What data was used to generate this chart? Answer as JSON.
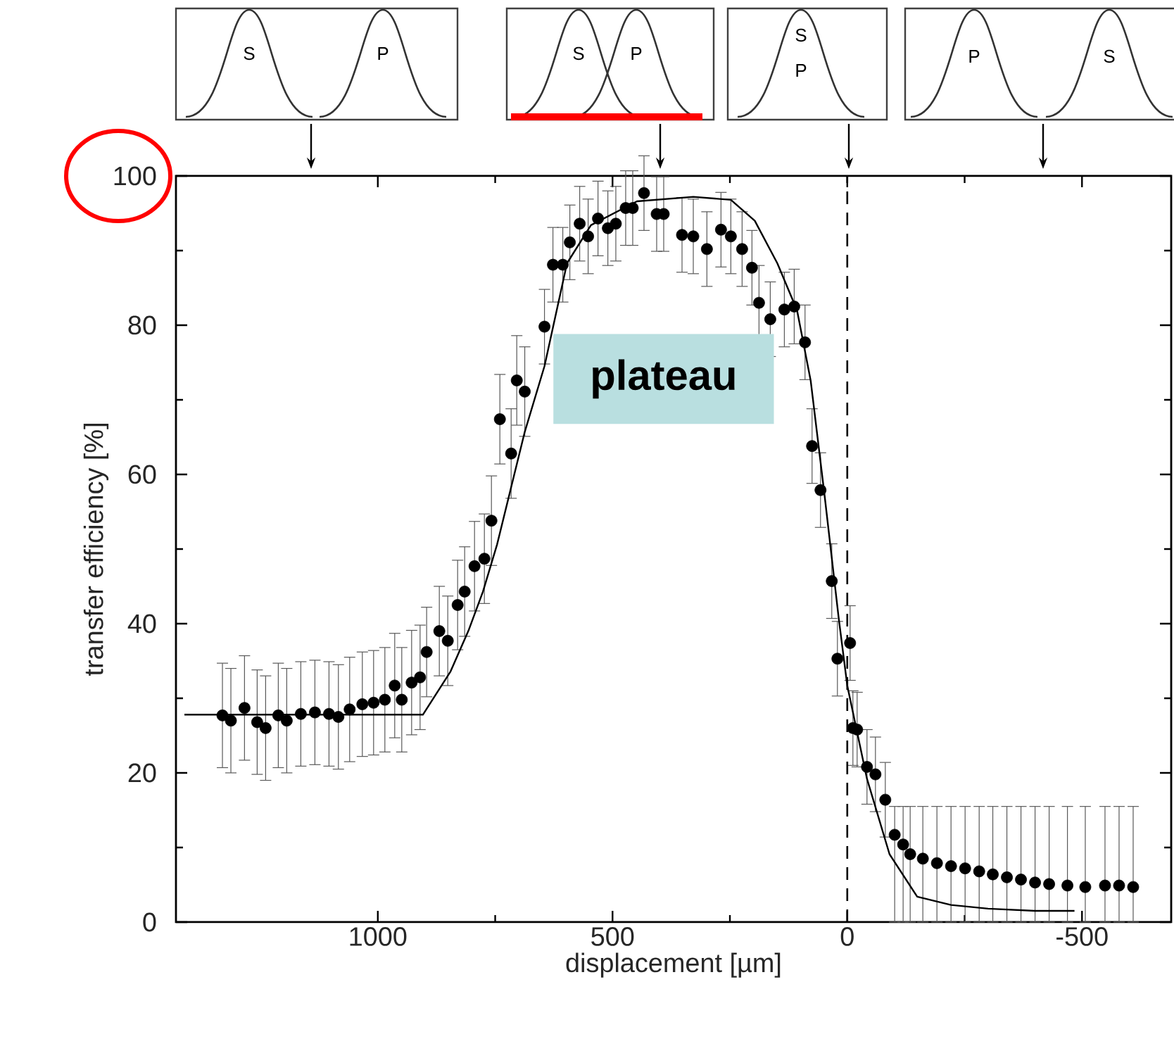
{
  "chart_data": {
    "type": "scatter",
    "xlabel": "displacement [µm]",
    "ylabel": "transfer efficiency [%]",
    "xlim": [
      1430,
      -690
    ],
    "ylim": [
      0,
      100
    ],
    "xticks": [
      1000,
      500,
      0,
      -500
    ],
    "yticks": [
      0,
      20,
      40,
      60,
      80,
      100
    ],
    "series": [
      {
        "color": "#000000",
        "marker": "circle",
        "x": [
          1331,
          1313,
          1284,
          1257,
          1239,
          1212,
          1194,
          1164,
          1134,
          1104,
          1084,
          1060,
          1033,
          1009,
          985,
          964,
          949,
          928,
          910,
          896,
          869,
          851,
          830,
          815,
          794,
          773,
          758,
          740,
          716,
          704,
          687,
          645,
          627,
          606,
          591,
          570,
          552,
          531,
          510,
          493,
          472,
          457,
          433,
          406,
          391,
          352,
          328,
          299,
          269,
          248,
          224,
          203,
          188,
          164,
          134,
          113,
          90,
          75,
          57,
          33,
          21,
          -6,
          -12,
          -21,
          -42,
          -60,
          -81,
          -101,
          -119,
          -134,
          -161,
          -191,
          -221,
          -251,
          -281,
          -310,
          -340,
          -370,
          -400,
          -430,
          -469,
          -507,
          -549,
          -579,
          -609
        ],
        "values": [
          27.7,
          27,
          28.7,
          26.8,
          26,
          27.7,
          27,
          27.9,
          28.1,
          27.9,
          27.5,
          28.5,
          29.2,
          29.4,
          29.8,
          31.7,
          29.8,
          32.1,
          32.8,
          36.2,
          39,
          37.7,
          42.5,
          44.3,
          47.7,
          48.7,
          53.8,
          67.4,
          62.8,
          72.6,
          71.1,
          79.8,
          88.1,
          88.1,
          91.1,
          93.6,
          91.9,
          94.3,
          93,
          93.6,
          95.7,
          95.7,
          97.7,
          94.9,
          94.9,
          92.1,
          91.9,
          90.2,
          92.8,
          91.9,
          90.2,
          87.7,
          83,
          80.8,
          82.1,
          82.5,
          77.7,
          63.8,
          57.9,
          45.7,
          35.3,
          37.4,
          26,
          25.8,
          20.8,
          19.8,
          16.4,
          11.7,
          10.4,
          9.1,
          8.5,
          7.9,
          7.5,
          7.2,
          6.8,
          6.4,
          6,
          5.7,
          5.3,
          5.1,
          4.9,
          4.7,
          4.9,
          4.9,
          4.7
        ],
        "errors": [
          7,
          7,
          7,
          7,
          7,
          7,
          7,
          7,
          7,
          7,
          7,
          7,
          7,
          7,
          7,
          7,
          7,
          7,
          7,
          6,
          6,
          6,
          6,
          6,
          6,
          6,
          6,
          6,
          6,
          6,
          6,
          5,
          5,
          5,
          5,
          5,
          5,
          5,
          5,
          5,
          5,
          5,
          5,
          5,
          5,
          5,
          5,
          5,
          5,
          5,
          5,
          5,
          5,
          5,
          5,
          5,
          5,
          5,
          5,
          5,
          5,
          5,
          5,
          5,
          5,
          5,
          5,
          [
            0,
            15.5
          ],
          [
            0,
            15.5
          ],
          [
            0,
            15.5
          ],
          [
            0,
            15.5
          ],
          [
            0,
            15.5
          ],
          [
            0,
            15.5
          ],
          [
            0,
            15.5
          ],
          [
            0,
            15.5
          ],
          [
            0,
            15.5
          ],
          [
            0,
            15.5
          ],
          [
            0,
            15.5
          ],
          [
            0,
            15.5
          ],
          [
            0,
            15.5
          ],
          [
            0,
            15.5
          ],
          [
            0,
            15.5
          ],
          [
            0,
            15.5
          ],
          [
            0,
            15.5
          ],
          [
            0,
            15.5
          ]
        ]
      },
      {
        "type": "line",
        "color": "#000000",
        "line_style": "solid",
        "x": [
          1412,
          1200,
          1000,
          904,
          845,
          806,
          776,
          746,
          687,
          645,
          597,
          546,
          448,
          328,
          248,
          197,
          149,
          107,
          78,
          48,
          18,
          0,
          -42,
          -90,
          -149,
          -221,
          -300,
          -400,
          -484
        ],
        "values": [
          27.8,
          27.8,
          27.8,
          27.8,
          33.6,
          39.2,
          44.3,
          50.6,
          65.7,
          74.5,
          88.3,
          93.4,
          96.6,
          97.2,
          96.8,
          94,
          88.3,
          82,
          72.6,
          57,
          40.6,
          31.7,
          19.2,
          9.1,
          3.4,
          2.3,
          1.8,
          1.5,
          1.5
        ]
      }
    ],
    "ref_lines": [
      {
        "axis": "x",
        "value": 0,
        "line_style": "dashed",
        "color": "#000000"
      }
    ],
    "annotations": [
      "S",
      "P",
      "S",
      "P",
      "S",
      "P",
      "P",
      "S",
      "plateau"
    ]
  }
}
